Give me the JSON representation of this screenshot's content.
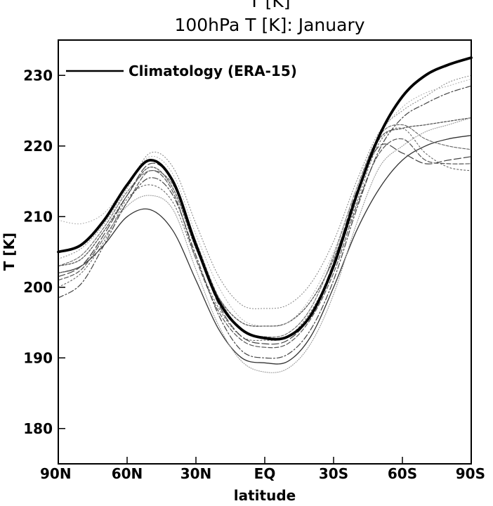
{
  "chart_data": {
    "type": "line",
    "title_top": "T [K]",
    "title": "100hPa T [K]: January",
    "xlabel": "latitude",
    "ylabel": "T [K]",
    "x_ticks": [
      "90N",
      "60N",
      "30N",
      "EQ",
      "30S",
      "60S",
      "90S"
    ],
    "x_tick_values": [
      90,
      60,
      30,
      0,
      -30,
      -60,
      -90
    ],
    "xlim": [
      90,
      -90
    ],
    "ylim": [
      175,
      235
    ],
    "y_ticks": [
      180,
      190,
      200,
      210,
      220,
      230
    ],
    "grid": false,
    "legend": {
      "placement": "top-left",
      "label": "Climatology (ERA-15)"
    },
    "x": [
      90,
      80,
      70,
      60,
      50,
      40,
      30,
      20,
      10,
      0,
      -10,
      -20,
      -30,
      -40,
      -50,
      -60,
      -70,
      -80,
      -90
    ],
    "series": [
      {
        "name": "Climatology (ERA-15)",
        "emphasis": "bold",
        "values": [
          205.0,
          206.0,
          209.5,
          214.5,
          218.0,
          215.0,
          206.0,
          198.0,
          194.0,
          192.8,
          193.0,
          196.0,
          203.0,
          213.0,
          221.5,
          227.0,
          230.0,
          231.5,
          232.5
        ]
      },
      {
        "values": [
          203.0,
          204.0,
          208.0,
          213.0,
          217.0,
          214.0,
          205.5,
          198.5,
          195.0,
          194.5,
          195.0,
          198.0,
          204.0,
          213.0,
          221.0,
          222.5,
          223.0,
          223.5,
          224.0
        ]
      },
      {
        "values": [
          202.0,
          203.0,
          206.0,
          210.0,
          211.0,
          208.0,
          201.0,
          194.0,
          190.0,
          189.3,
          189.5,
          193.0,
          200.0,
          208.0,
          214.0,
          218.0,
          220.0,
          221.0,
          221.5
        ]
      },
      {
        "values": [
          201.0,
          202.5,
          207.0,
          212.0,
          216.5,
          213.5,
          204.0,
          196.5,
          192.5,
          191.5,
          192.0,
          195.5,
          202.0,
          211.5,
          219.0,
          221.0,
          218.0,
          217.5,
          217.5
        ]
      },
      {
        "values": [
          200.0,
          202.0,
          206.5,
          212.5,
          214.5,
          212.0,
          204.0,
          197.0,
          193.0,
          192.5,
          193.0,
          196.5,
          203.0,
          212.0,
          220.5,
          222.5,
          219.0,
          217.0,
          216.5
        ]
      },
      {
        "values": [
          198.5,
          200.5,
          206.0,
          212.0,
          215.5,
          213.0,
          204.5,
          196.0,
          191.0,
          190.0,
          190.5,
          194.0,
          201.0,
          211.0,
          219.5,
          224.0,
          226.0,
          227.5,
          228.5
        ]
      },
      {
        "values": [
          204.0,
          205.5,
          209.0,
          214.0,
          219.0,
          217.0,
          209.0,
          201.5,
          197.5,
          197.0,
          197.5,
          200.5,
          206.5,
          215.0,
          222.0,
          225.0,
          227.0,
          229.0,
          230.0
        ]
      },
      {
        "values": [
          203.0,
          204.5,
          208.5,
          213.5,
          216.5,
          214.5,
          206.5,
          198.5,
          194.0,
          193.0,
          193.5,
          197.0,
          204.5,
          214.0,
          221.5,
          223.0,
          221.0,
          220.0,
          219.5
        ]
      },
      {
        "values": [
          202.0,
          203.0,
          207.0,
          211.5,
          213.0,
          211.0,
          202.5,
          194.5,
          189.5,
          188.0,
          188.5,
          192.0,
          199.0,
          209.0,
          217.0,
          220.0,
          222.0,
          223.0,
          224.0
        ]
      },
      {
        "values": [
          201.5,
          203.0,
          207.5,
          213.0,
          217.5,
          215.0,
          206.0,
          197.5,
          193.0,
          192.0,
          192.5,
          196.0,
          203.5,
          213.5,
          220.0,
          219.0,
          217.5,
          218.0,
          218.5
        ]
      },
      {
        "values": [
          209.5,
          209.0,
          210.5,
          214.5,
          218.5,
          216.0,
          207.5,
          200.0,
          195.5,
          194.5,
          195.0,
          198.5,
          205.0,
          214.0,
          221.5,
          225.5,
          227.5,
          228.5,
          229.5
        ]
      }
    ]
  }
}
